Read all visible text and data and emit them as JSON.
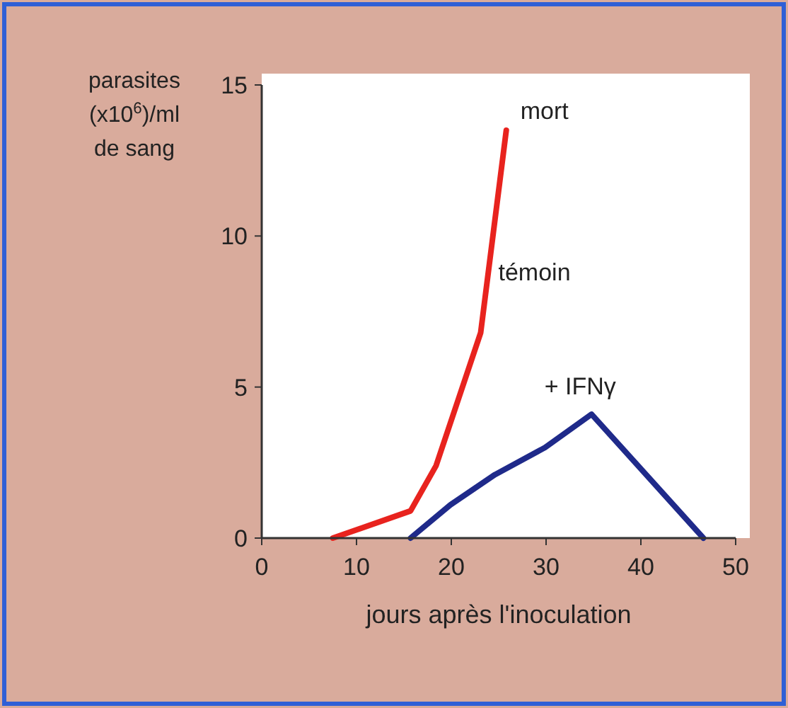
{
  "chart_data": {
    "type": "line",
    "xlabel": "jours après l'inoculation",
    "ylabel": "parasites (x10$^{6}$)/ml de sang",
    "xlim": [
      0,
      50
    ],
    "ylim": [
      0,
      15
    ],
    "xticks": [
      0,
      10,
      20,
      30,
      40,
      50
    ],
    "yticks": [
      0,
      5,
      10,
      15
    ],
    "grid": false,
    "marker": "none",
    "line_style": "solid",
    "series": [
      {
        "name": "témoin",
        "color": "#e8231e",
        "x": [
          7.5,
          15.7,
          18.4,
          23.1,
          25.8
        ],
        "values": [
          0,
          0.9,
          2.4,
          6.8,
          13.5
        ]
      },
      {
        "name": "+ IFNγ",
        "color": "#1f2a8a",
        "x": [
          15.7,
          19.9,
          24.6,
          29.9,
          34.8,
          46.6
        ],
        "values": [
          0,
          1.1,
          2.1,
          3.0,
          4.1,
          0
        ]
      }
    ],
    "annotations": [
      {
        "text": "mort",
        "x": 25.8,
        "y": 13.5
      }
    ]
  }
}
